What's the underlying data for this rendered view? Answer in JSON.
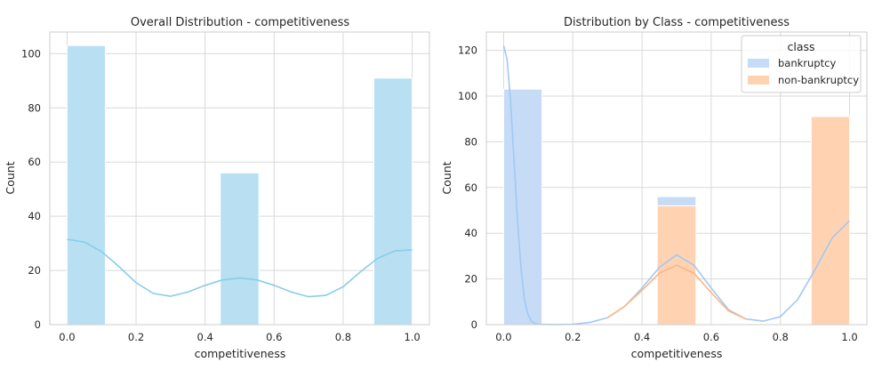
{
  "colors": {
    "overall_bar": "#b8e0f2",
    "overall_kde": "#87ceeb",
    "bankruptcy": "#c6dbf5",
    "bankruptcy_line": "#a1c9f4",
    "non_bankruptcy": "#ffd2b2",
    "non_bankruptcy_line": "#ffb482",
    "grid": "#d9d9d9",
    "spine": "#cccccc"
  },
  "chart_data": [
    {
      "type": "bar",
      "title": "Overall Distribution - competitiveness",
      "xlabel": "competitiveness",
      "ylabel": "Count",
      "xlim": [
        -0.05,
        1.05
      ],
      "ylim": [
        0,
        108
      ],
      "xticks": [
        "0.0",
        "0.2",
        "0.4",
        "0.6",
        "0.8",
        "1.0"
      ],
      "yticks": [
        "0",
        "20",
        "40",
        "60",
        "80",
        "100"
      ],
      "grid": true,
      "bars": [
        {
          "x0": 0.0,
          "x1": 0.111,
          "value": 103
        },
        {
          "x0": 0.444,
          "x1": 0.556,
          "value": 56
        },
        {
          "x0": 0.889,
          "x1": 1.0,
          "value": 91
        }
      ],
      "kde": {
        "x": [
          0.0,
          0.05,
          0.1,
          0.15,
          0.2,
          0.25,
          0.3,
          0.35,
          0.4,
          0.45,
          0.5,
          0.55,
          0.6,
          0.65,
          0.7,
          0.75,
          0.8,
          0.85,
          0.9,
          0.95,
          1.0
        ],
        "y": [
          31.5,
          30.5,
          27,
          21.5,
          15.5,
          11.5,
          10.5,
          12,
          14.5,
          16.5,
          17.2,
          16.5,
          14.5,
          12,
          10.3,
          10.8,
          14,
          19.5,
          24.5,
          27.2,
          27.6
        ]
      }
    },
    {
      "type": "bar",
      "title": "Distribution by Class - competitiveness",
      "xlabel": "competitiveness",
      "ylabel": "Count",
      "xlim": [
        -0.05,
        1.05
      ],
      "ylim": [
        0,
        128
      ],
      "xticks": [
        "0.0",
        "0.2",
        "0.4",
        "0.6",
        "0.8",
        "1.0"
      ],
      "yticks": [
        "0",
        "20",
        "40",
        "60",
        "80",
        "100",
        "120"
      ],
      "grid": true,
      "legend": {
        "title": "class",
        "placement": "top-right",
        "entries": [
          "bankruptcy",
          "non-bankruptcy"
        ]
      },
      "series": [
        {
          "name": "bankruptcy",
          "bars": [
            {
              "x0": 0.0,
              "x1": 0.111,
              "value": 103
            },
            {
              "x0": 0.444,
              "x1": 0.556,
              "value": 4
            }
          ],
          "kde": {
            "x": [
              0.0,
              0.01,
              0.02,
              0.03,
              0.04,
              0.05,
              0.06,
              0.07,
              0.08,
              0.09,
              0.1,
              0.12,
              0.15,
              0.2,
              0.25,
              0.3,
              0.35,
              0.4,
              0.45,
              0.5,
              0.55,
              0.6,
              0.65,
              0.7,
              0.75,
              0.8,
              0.85,
              0.9,
              0.95,
              1.0
            ],
            "y": [
              122,
              116,
              98,
              72,
              46,
              25,
              11,
              4.5,
              1.5,
              0.5,
              0.2,
              0.1,
              0.05,
              0.2,
              1,
              3,
              8,
              16,
              25,
              30.5,
              26,
              16,
              6.5,
              2.5,
              1.5,
              3.5,
              11,
              24,
              38,
              45.5
            ]
          }
        },
        {
          "name": "non-bankruptcy",
          "bars": [
            {
              "x0": 0.444,
              "x1": 0.556,
              "value": 52
            },
            {
              "x0": 0.889,
              "x1": 1.0,
              "value": 91
            }
          ],
          "kde": {
            "x": [
              0.3,
              0.35,
              0.4,
              0.45,
              0.5,
              0.55,
              0.6,
              0.65,
              0.7
            ],
            "y": [
              3,
              8,
              15,
              22.5,
              26,
              22.5,
              14,
              6,
              2.5
            ]
          }
        }
      ]
    }
  ]
}
